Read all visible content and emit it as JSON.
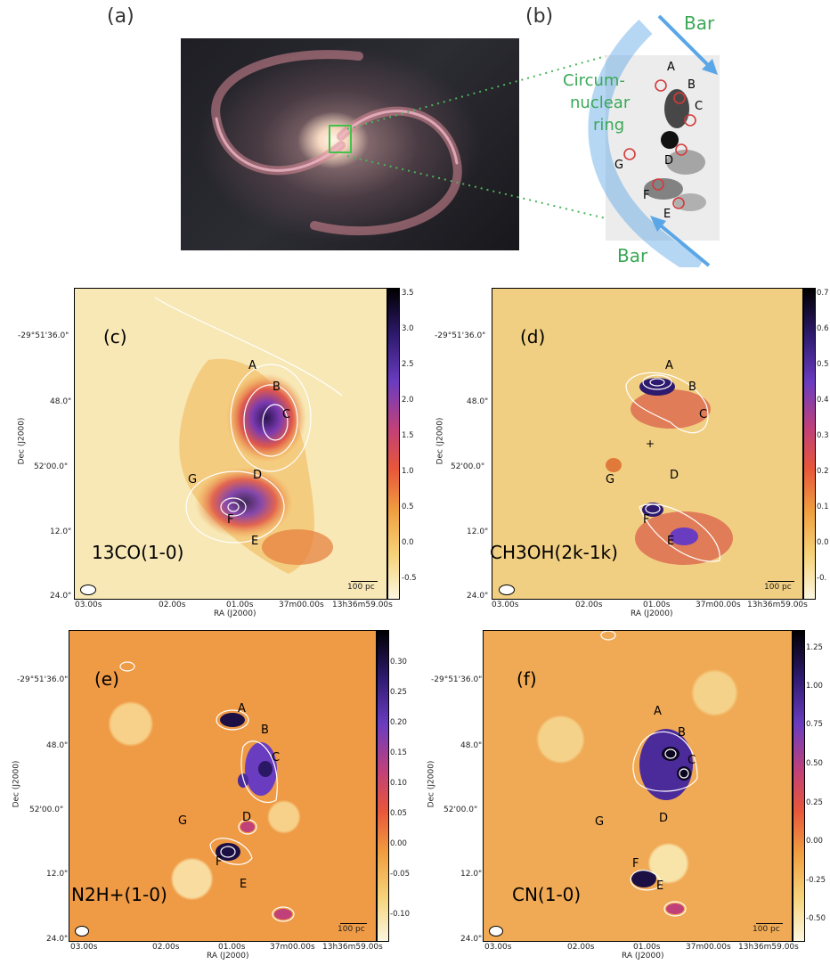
{
  "top": {
    "label_a": "(a)",
    "label_b": "(b)",
    "bar_top": "Bar",
    "bar_bottom": "Bar",
    "ring_line1": "Circum-",
    "ring_line2": "nuclear",
    "ring_line3": "ring",
    "region_labels": [
      "A",
      "B",
      "C",
      "D",
      "E",
      "F",
      "G"
    ]
  },
  "axes": {
    "x_ticks": [
      "03.00s",
      "02.00s",
      "01.00s",
      "37m00.00s",
      "13h36m59.00s"
    ],
    "x_label": "RA (J2000)",
    "y_label": "Dec (J2000)",
    "y_ticks": [
      "-29°51'36.0\"",
      "48.0\"",
      "52'00.0\"",
      "12.0\"",
      "24.0\""
    ]
  },
  "scale_bar": "100 pc",
  "panels": [
    {
      "id": "(c)",
      "molecule": "13CO(1-0)",
      "colorbar": [
        "3.5",
        "3.0",
        "2.5",
        "2.0",
        "1.5",
        "1.0",
        "0.5",
        "0.0",
        "-0.5"
      ]
    },
    {
      "id": "(d)",
      "molecule": "CH3OH(2k-1k)",
      "colorbar": [
        "0.7",
        "0.6",
        "0.5",
        "0.4",
        "0.3",
        "0.2",
        "0.1",
        "0.0",
        "-0."
      ]
    },
    {
      "id": "(e)",
      "molecule": "N2H+(1-0)",
      "colorbar": [
        "0.30",
        "0.25",
        "0.20",
        "0.15",
        "0.10",
        "0.05",
        "0.00",
        "-0.05",
        "-0.10"
      ]
    },
    {
      "id": "(f)",
      "molecule": "CN(1-0)",
      "colorbar": [
        "1.25",
        "1.00",
        "0.75",
        "0.50",
        "0.25",
        "0.00",
        "-0.25",
        "-0.50"
      ]
    }
  ],
  "colors": {
    "map_low": "#f7e7b0",
    "map_mid": "#e98a2e",
    "map_high": "#3a1c7a",
    "ring_green": "#3aa856",
    "bar_blue": "#5aa6e6"
  }
}
